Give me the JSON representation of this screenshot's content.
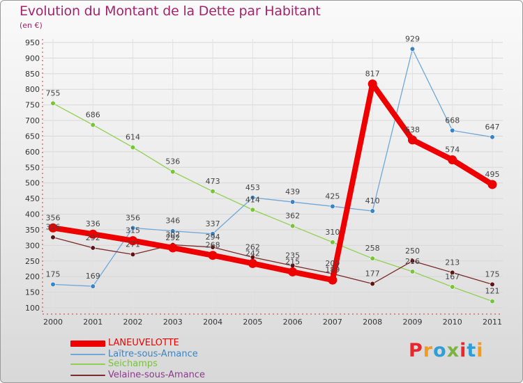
{
  "header": {
    "title": "Evolution du Montant de la Dette par Habitant",
    "subtitle": "(en €)"
  },
  "logo": {
    "text": "Proxiti"
  },
  "chart_data": {
    "type": "line",
    "title": "Evolution du Montant de la Dette par Habitant",
    "subtitle": "(en €)",
    "categories": [
      "2000",
      "2001",
      "2002",
      "2003",
      "2004",
      "2005",
      "2006",
      "2007",
      "2008",
      "2009",
      "2010",
      "2011"
    ],
    "ylim": [
      100,
      950
    ],
    "yticks": [
      100,
      150,
      200,
      250,
      300,
      350,
      400,
      450,
      500,
      550,
      600,
      650,
      700,
      750,
      800,
      850,
      900,
      950
    ],
    "grid": true,
    "legend_position": "bottom-left",
    "series": [
      {
        "name": "Seichamps",
        "color": "#8fd14f",
        "marker": "#77c43a",
        "values": [
          755,
          686,
          614,
          536,
          473,
          414,
          362,
          310,
          258,
          216,
          167,
          121
        ],
        "labels": [
          "755",
          "686",
          "614",
          "536",
          "473",
          "414",
          "362",
          "310",
          "258",
          "216",
          "167",
          "121"
        ]
      },
      {
        "name": "Laïtre-sous-Amance",
        "color": "#6fa8d8",
        "marker": "#3b83c4",
        "values": [
          175,
          169,
          356,
          346,
          337,
          453,
          439,
          425,
          410,
          929,
          668,
          647
        ],
        "labels": [
          "175",
          "169",
          "356",
          "346",
          "337",
          "453",
          "439",
          "425",
          "410",
          "929",
          "668",
          "647"
        ]
      },
      {
        "name": "Velaine-sous-Amance",
        "color": "#7a2a2a",
        "marker": "#5e1414",
        "values": [
          326,
          292,
          271,
          302,
          294,
          262,
          235,
          209,
          177,
          250,
          213,
          175
        ],
        "labels": [
          "326",
          "292",
          "271",
          "302",
          "294",
          "262",
          "235",
          "209",
          "177",
          "250",
          "213",
          "175"
        ]
      },
      {
        "name": "LANEUVELOTTE",
        "color": "#ee0000",
        "marker": "#ee0000",
        "values": [
          356,
          336,
          315,
          292,
          268,
          242,
          215,
          189,
          817,
          638,
          574,
          495
        ],
        "labels": [
          "356",
          "336",
          "315",
          "292",
          "268",
          "242",
          "215",
          "189",
          "817",
          "638",
          "574",
          "495"
        ]
      }
    ]
  }
}
